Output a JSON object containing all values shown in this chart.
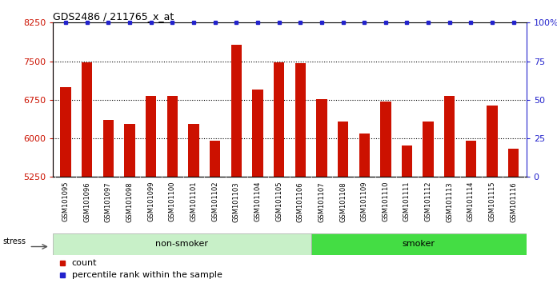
{
  "title": "GDS2486 / 211765_x_at",
  "categories": [
    "GSM101095",
    "GSM101096",
    "GSM101097",
    "GSM101098",
    "GSM101099",
    "GSM101100",
    "GSM101101",
    "GSM101102",
    "GSM101103",
    "GSM101104",
    "GSM101105",
    "GSM101106",
    "GSM101107",
    "GSM101108",
    "GSM101109",
    "GSM101110",
    "GSM101111",
    "GSM101112",
    "GSM101113",
    "GSM101114",
    "GSM101115",
    "GSM101116"
  ],
  "values": [
    7000,
    7480,
    6360,
    6280,
    6820,
    6820,
    6280,
    5960,
    7820,
    6950,
    7480,
    7460,
    6760,
    6320,
    6090,
    6720,
    5860,
    6320,
    6820,
    5960,
    6640,
    5800
  ],
  "bar_color": "#cc1100",
  "percentile_color": "#2222cc",
  "ylim": [
    5250,
    8250
  ],
  "y_ticks": [
    5250,
    6000,
    6750,
    7500,
    8250
  ],
  "right_ylim": [
    0,
    100
  ],
  "right_yticks": [
    0,
    25,
    50,
    75,
    100
  ],
  "right_yticklabels": [
    "0",
    "25",
    "50",
    "75",
    "100%"
  ],
  "non_smoker_count": 12,
  "smoker_count": 10,
  "non_smoker_color": "#c8f0c8",
  "smoker_color": "#44dd44",
  "stress_label": "stress",
  "legend_count_label": "count",
  "legend_perc_label": "percentile rank within the sample",
  "dotted_lines": [
    6000,
    6750,
    7500
  ],
  "bar_width": 0.5,
  "plot_bg": "#ffffff",
  "tick_area_bg": "#d0d0d0"
}
